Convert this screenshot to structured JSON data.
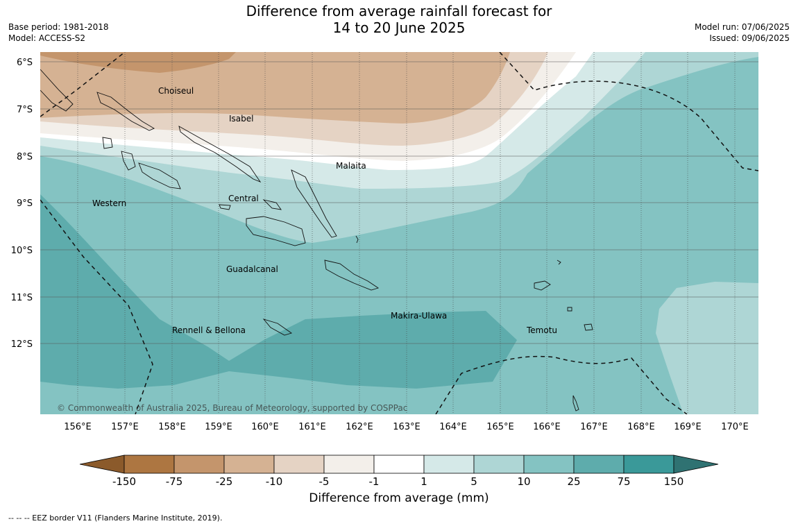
{
  "title": {
    "line1": "Difference from average rainfall forecast for",
    "line2": "14 to 20 June 2025"
  },
  "meta_left": {
    "base_period": "Base period: 1981-2018",
    "model": "Model: ACCESS-S2"
  },
  "meta_right": {
    "model_run": "Model run: 07/06/2025",
    "issued": "Issued: 09/06/2025"
  },
  "latitude_labels": [
    "6°S",
    "7°S",
    "8°S",
    "9°S",
    "10°S",
    "11°S",
    "12°S"
  ],
  "longitude_labels": [
    "156°E",
    "157°E",
    "158°E",
    "159°E",
    "160°E",
    "161°E",
    "162°E",
    "163°E",
    "164°E",
    "165°E",
    "166°E",
    "167°E",
    "168°E",
    "169°E",
    "170°E"
  ],
  "places": [
    "Choiseul",
    "Isabel",
    "Malaita",
    "Western",
    "Central",
    "Guadalcanal",
    "Makira-Ulawa",
    "Rennell & Bellona",
    "Temotu"
  ],
  "copyright": "© Commonwealth of Australia 2025, Bureau of Meteorology, supported by COSPPac",
  "colorbar": {
    "title": "Difference from average (mm)",
    "tick_labels": [
      "-150",
      "-75",
      "-25",
      "-10",
      "-5",
      "-1",
      "1",
      "5",
      "10",
      "25",
      "75",
      "150"
    ],
    "colors": [
      "#8b5a2b",
      "#ad7641",
      "#c4956c",
      "#d5b293",
      "#e5d3c4",
      "#f3efea",
      "#ffffff",
      "#d5e9e8",
      "#aed6d5",
      "#84c3c2",
      "#5eacac",
      "#3a9999",
      "#2f7272"
    ]
  },
  "footer": "--  --  -- EEZ border V11 (Flanders Marine Institute, 2019)."
}
